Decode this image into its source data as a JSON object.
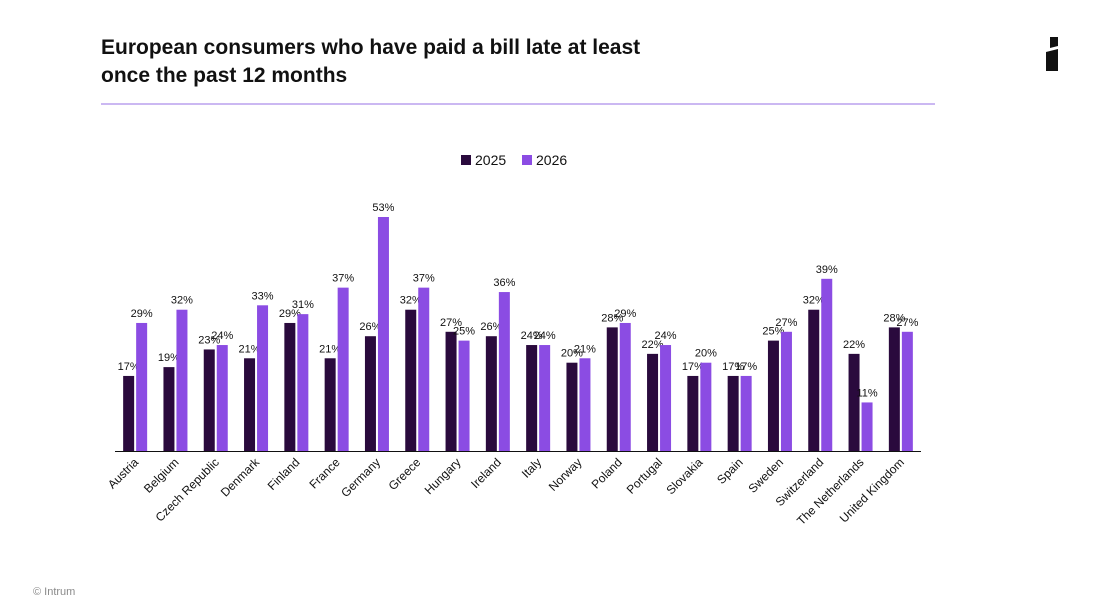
{
  "header": {
    "title_line1": "European consumers who have paid a bill late at least",
    "title_line2": "once the past 12 months"
  },
  "footer": {
    "copyright": "© Intrum"
  },
  "logo": {
    "icon": "intrum-i-logo-icon"
  },
  "colors": {
    "series_2025": "#2a0a3d",
    "series_2026": "#8b4ce3",
    "rule": "#cbb8f2"
  },
  "chart_data": {
    "type": "bar",
    "title": "European consumers who have paid a bill late at least once the past 12 months",
    "xlabel": "",
    "ylabel": "",
    "ylim": [
      0,
      55
    ],
    "grid": false,
    "legend_position": "top-center",
    "categories": [
      "Austria",
      "Belgium",
      "Czech Republic",
      "Denmark",
      "Finland",
      "France",
      "Germany",
      "Greece",
      "Hungary",
      "Ireland",
      "Italy",
      "Norway",
      "Poland",
      "Portugal",
      "Slovakia",
      "Spain",
      "Sweden",
      "Switzerland",
      "The Netherlands",
      "United Kingdom"
    ],
    "series": [
      {
        "name": "2025",
        "values": [
          17,
          19,
          23,
          21,
          29,
          21,
          26,
          32,
          27,
          26,
          24,
          20,
          28,
          22,
          17,
          17,
          25,
          32,
          22,
          28
        ]
      },
      {
        "name": "2026",
        "values": [
          29,
          32,
          24,
          33,
          31,
          37,
          53,
          37,
          25,
          36,
          24,
          21,
          29,
          24,
          20,
          17,
          27,
          39,
          11,
          27
        ]
      }
    ],
    "value_suffix": "%"
  }
}
